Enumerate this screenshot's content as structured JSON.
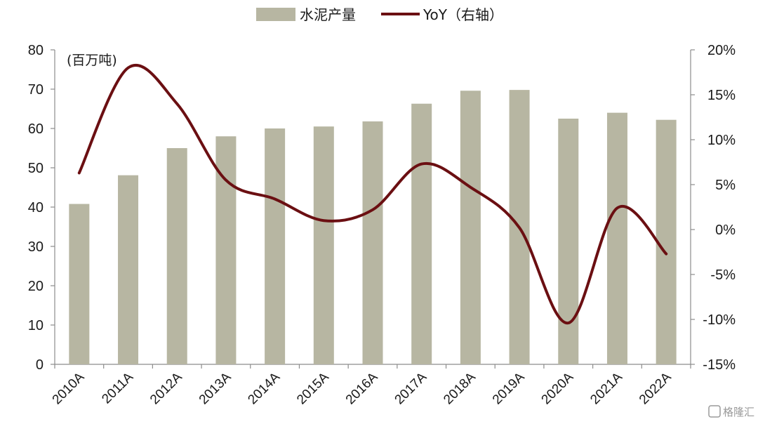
{
  "chart_data": {
    "type": "bar",
    "categories": [
      "2010A",
      "2011A",
      "2012A",
      "2013A",
      "2014A",
      "2015A",
      "2016A",
      "2017A",
      "2018A",
      "2019A",
      "2020A",
      "2021A",
      "2022A"
    ],
    "series": [
      {
        "name": "水泥产量",
        "type": "bar",
        "axis": "left",
        "values": [
          40.8,
          48.1,
          55.0,
          58.0,
          60.0,
          60.5,
          61.8,
          66.3,
          69.6,
          69.8,
          62.5,
          64.0,
          62.2
        ],
        "color": "#b7b6a2"
      },
      {
        "name": "YoY（右轴）",
        "type": "line",
        "axis": "right",
        "values": [
          6.3,
          18.0,
          14.0,
          5.5,
          3.4,
          1.0,
          2.2,
          7.3,
          4.7,
          0.2,
          -10.4,
          2.4,
          -2.7
        ],
        "color": "#6b0f12"
      }
    ],
    "y_left": {
      "min": 0,
      "max": 80,
      "step": 10,
      "unit_label": "(百万吨)"
    },
    "y_right": {
      "min": -15,
      "max": 20,
      "step": 5,
      "format": "percent"
    },
    "legend": {
      "position": "top-center"
    }
  },
  "watermark": "格隆汇"
}
